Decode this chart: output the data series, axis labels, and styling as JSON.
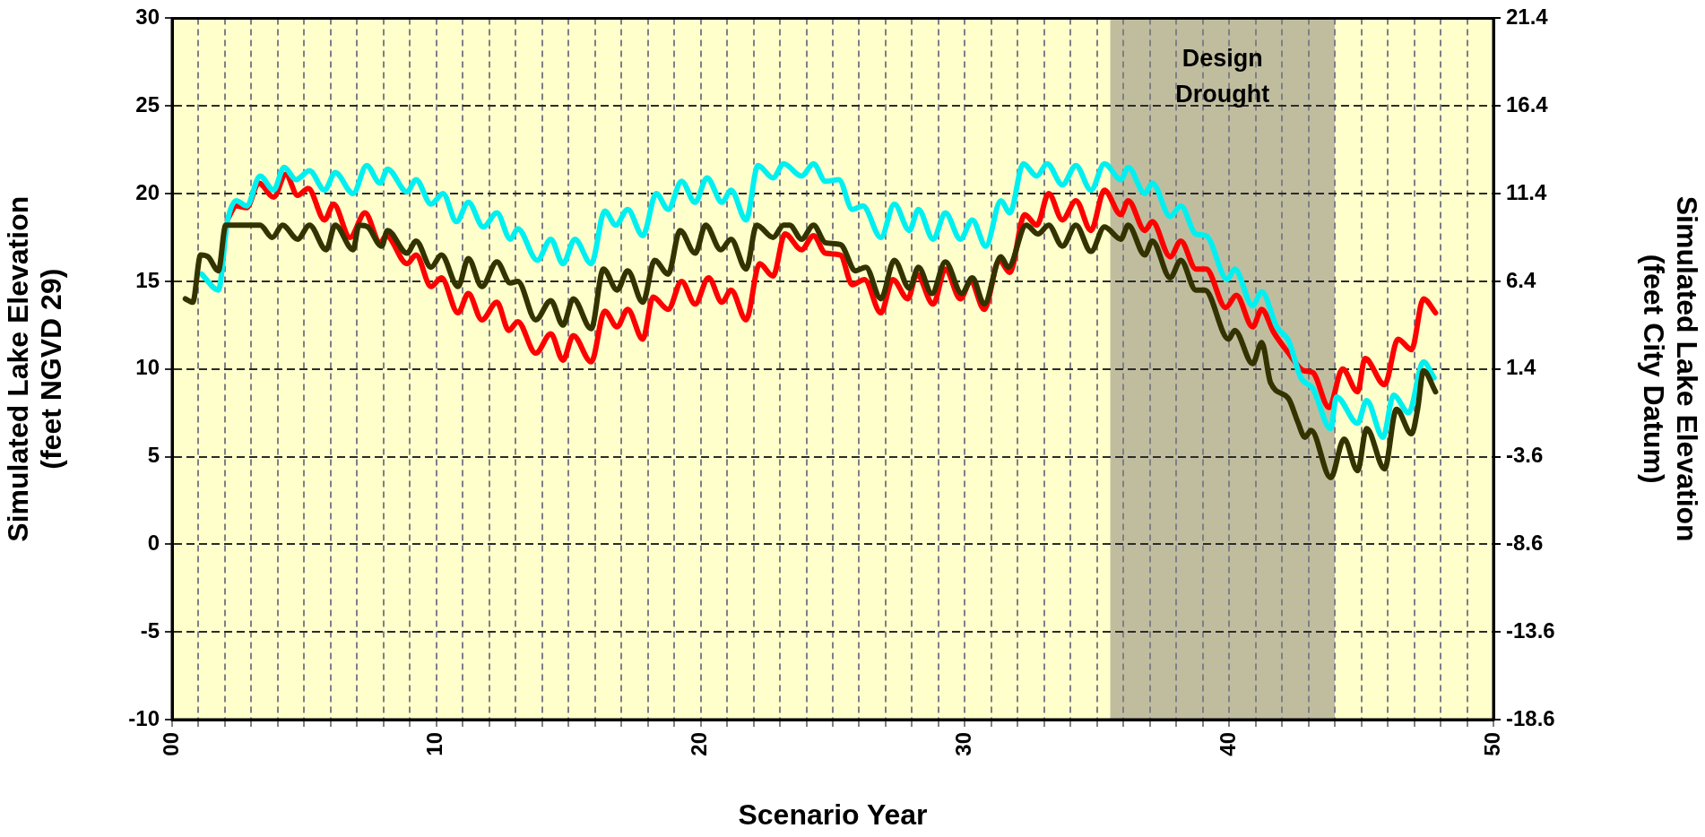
{
  "chart_data": {
    "type": "line",
    "xlabel": "Scenario Year",
    "ylabel": "Simulated Lake Elevation\n(feet NGVD 29)",
    "y2label": "Simulated Lake Elevation\n(feet City Datum)",
    "xlim": [
      0,
      50
    ],
    "xticks": [
      {
        "value": 0,
        "label": "00"
      },
      {
        "value": 1,
        "label": null
      },
      {
        "value": 2,
        "label": null
      },
      {
        "value": 3,
        "label": null
      },
      {
        "value": 4,
        "label": null
      },
      {
        "value": 5,
        "label": null
      },
      {
        "value": 6,
        "label": null
      },
      {
        "value": 7,
        "label": null
      },
      {
        "value": 8,
        "label": null
      },
      {
        "value": 9,
        "label": null
      },
      10,
      {
        "value": 11,
        "label": null
      },
      {
        "value": 12,
        "label": null
      },
      {
        "value": 13,
        "label": null
      },
      {
        "value": 14,
        "label": null
      },
      {
        "value": 15,
        "label": null
      },
      {
        "value": 16,
        "label": null
      },
      {
        "value": 17,
        "label": null
      },
      {
        "value": 18,
        "label": null
      },
      {
        "value": 19,
        "label": null
      },
      20,
      {
        "value": 21,
        "label": null
      },
      {
        "value": 22,
        "label": null
      },
      {
        "value": 23,
        "label": null
      },
      {
        "value": 24,
        "label": null
      },
      {
        "value": 25,
        "label": null
      },
      {
        "value": 26,
        "label": null
      },
      {
        "value": 27,
        "label": null
      },
      {
        "value": 28,
        "label": null
      },
      {
        "value": 29,
        "label": null
      },
      30,
      {
        "value": 31,
        "label": null
      },
      {
        "value": 32,
        "label": null
      },
      {
        "value": 33,
        "label": null
      },
      {
        "value": 34,
        "label": null
      },
      {
        "value": 35,
        "label": null
      },
      {
        "value": 36,
        "label": null
      },
      {
        "value": 37,
        "label": null
      },
      {
        "value": 38,
        "label": null
      },
      {
        "value": 39,
        "label": null
      },
      40,
      {
        "value": 41,
        "label": null
      },
      {
        "value": 42,
        "label": null
      },
      {
        "value": 43,
        "label": null
      },
      {
        "value": 44,
        "label": null
      },
      {
        "value": 45,
        "label": null
      },
      {
        "value": 46,
        "label": null
      },
      {
        "value": 47,
        "label": null
      },
      {
        "value": 48,
        "label": null
      },
      {
        "value": 49,
        "label": null
      },
      50
    ],
    "ylim": [
      -10,
      30
    ],
    "yticks": [
      -10,
      -5,
      0,
      5,
      10,
      15,
      20,
      25,
      30
    ],
    "y2lim": [
      -18.6,
      21.4
    ],
    "y2ticks": [
      -18.6,
      -13.6,
      -8.6,
      -3.6,
      1.4,
      6.4,
      11.4,
      16.4,
      21.4
    ],
    "grid": true,
    "bands": [
      {
        "axis": "x",
        "from": 35.5,
        "to": 44.0,
        "label": "Design Drought",
        "color": "#c0bd9f"
      }
    ],
    "series": [
      {
        "color": "#ff0000",
        "x": [
          2.09,
          2.43,
          2.82,
          3.28,
          3.84,
          4.3,
          4.75,
          5.15,
          5.77,
          6.11,
          6.73,
          7.3,
          7.87,
          8.1,
          8.89,
          9.23,
          9.8,
          10.19,
          10.82,
          11.21,
          11.72,
          12.29,
          12.74,
          13.08,
          13.76,
          14.33,
          14.79,
          15.18,
          15.86,
          16.37,
          16.84,
          17.24,
          17.81,
          18.2,
          18.77,
          19.28,
          19.79,
          20.3,
          20.81,
          21.15,
          21.72,
          22.23,
          22.74,
          23.19,
          23.82,
          24.27,
          24.72,
          25.29,
          25.74,
          26.2,
          26.82,
          27.27,
          27.84,
          28.18,
          28.8,
          29.26,
          29.83,
          30.22,
          30.73,
          31.3,
          31.7,
          32.26,
          32.72,
          33.17,
          33.69,
          34.2,
          34.77,
          35.28,
          35.9,
          36.18,
          36.81,
          37.09,
          37.77,
          38.17,
          38.74,
          39.13,
          39.87,
          40.27,
          40.89,
          41.23,
          41.68,
          42.25,
          42.82,
          43.16,
          43.78,
          44.29,
          44.86,
          45.14,
          45.88,
          46.39,
          46.9,
          47.35,
          47.81
        ],
        "values": [
          18.5,
          19.3,
          19.2,
          20.6,
          19.8,
          21.1,
          19.9,
          20.3,
          18.5,
          19.4,
          17.5,
          18.9,
          17.2,
          17.6,
          16.0,
          16.5,
          14.7,
          15.2,
          13.2,
          14.3,
          12.8,
          13.8,
          12.2,
          12.7,
          10.9,
          12.0,
          10.5,
          11.9,
          10.4,
          13.3,
          12.4,
          13.4,
          11.7,
          14.1,
          13.4,
          15.0,
          13.7,
          15.2,
          13.8,
          14.5,
          12.8,
          16.0,
          15.3,
          17.7,
          16.8,
          17.6,
          16.6,
          16.5,
          14.8,
          15.1,
          13.2,
          15.1,
          14.0,
          15.4,
          13.7,
          15.7,
          14.0,
          15.0,
          13.4,
          16.2,
          15.5,
          18.8,
          18.2,
          20.0,
          18.5,
          19.6,
          17.9,
          20.2,
          18.8,
          19.6,
          17.9,
          18.4,
          16.4,
          17.3,
          15.7,
          15.7,
          13.5,
          14.2,
          12.4,
          13.4,
          12.1,
          10.9,
          9.9,
          9.8,
          7.8,
          10.0,
          8.7,
          10.6,
          9.1,
          11.7,
          11.1,
          14.0,
          13.2
        ]
      },
      {
        "color": "#00f0f0",
        "x": [
          1.12,
          1.75,
          2.09,
          2.43,
          2.82,
          3.33,
          3.84,
          4.24,
          4.69,
          5.2,
          5.77,
          6.17,
          6.85,
          7.36,
          7.87,
          8.15,
          8.89,
          9.23,
          9.8,
          10.25,
          10.76,
          11.21,
          11.78,
          12.29,
          12.8,
          13.08,
          13.82,
          14.33,
          14.79,
          15.24,
          15.86,
          16.37,
          16.79,
          17.24,
          17.81,
          18.32,
          18.77,
          19.28,
          19.79,
          20.24,
          20.81,
          21.15,
          21.72,
          22.17,
          22.74,
          23.14,
          23.82,
          24.27,
          24.72,
          25.23,
          25.74,
          26.14,
          26.82,
          27.33,
          27.9,
          28.24,
          28.8,
          29.26,
          29.83,
          30.28,
          30.79,
          31.36,
          31.7,
          32.21,
          32.72,
          33.11,
          33.69,
          34.2,
          34.77,
          35.28,
          35.9,
          36.18,
          36.81,
          37.09,
          37.77,
          38.17,
          38.74,
          39.13,
          39.93,
          40.21,
          40.89,
          41.23,
          41.8,
          42.25,
          42.71,
          43.16,
          43.84,
          44.06,
          44.86,
          45.2,
          45.82,
          46.22,
          46.79,
          47.35,
          47.75
        ],
        "values": [
          15.4,
          14.5,
          18.4,
          19.6,
          19.3,
          21.0,
          20.2,
          21.5,
          20.8,
          21.3,
          20.2,
          21.2,
          20.0,
          21.6,
          20.6,
          21.4,
          20.1,
          20.8,
          19.4,
          20.0,
          18.4,
          19.5,
          18.1,
          18.9,
          17.4,
          18.0,
          16.2,
          17.4,
          16.0,
          17.4,
          16.0,
          19.0,
          18.2,
          19.1,
          17.6,
          20.0,
          19.1,
          20.7,
          19.5,
          20.9,
          19.5,
          20.2,
          18.5,
          21.6,
          20.9,
          21.7,
          21.0,
          21.7,
          20.7,
          20.8,
          19.1,
          19.3,
          17.5,
          19.4,
          17.9,
          19.1,
          17.4,
          18.9,
          17.4,
          18.5,
          17.0,
          19.6,
          18.9,
          21.7,
          21.0,
          21.7,
          20.5,
          21.6,
          20.2,
          21.7,
          20.8,
          21.5,
          20.0,
          20.6,
          18.7,
          19.3,
          17.7,
          17.6,
          15.1,
          15.7,
          13.6,
          14.4,
          12.4,
          11.6,
          9.5,
          8.9,
          6.6,
          8.4,
          6.9,
          8.2,
          6.1,
          8.5,
          7.5,
          10.4,
          9.5
        ]
      },
      {
        "color": "#333300",
        "x": [
          0.5,
          0.78,
          1.08,
          1.36,
          1.75,
          2.03,
          3.33,
          3.79,
          4.18,
          4.75,
          5.2,
          5.83,
          6.17,
          6.85,
          7.07,
          7.4,
          7.93,
          8.15,
          8.89,
          9.23,
          9.8,
          10.19,
          10.82,
          11.21,
          11.72,
          12.29,
          12.8,
          13.08,
          13.76,
          14.33,
          14.79,
          15.18,
          15.86,
          16.32,
          16.84,
          17.24,
          17.81,
          18.26,
          18.77,
          19.22,
          19.79,
          20.19,
          20.76,
          21.15,
          21.72,
          22.12,
          22.74,
          23.14,
          23.37,
          23.82,
          24.27,
          24.72,
          25.29,
          25.86,
          26.25,
          26.82,
          27.33,
          27.9,
          28.24,
          28.75,
          29.26,
          29.88,
          30.28,
          30.73,
          31.36,
          31.64,
          32.32,
          32.77,
          33.17,
          33.69,
          34.2,
          34.77,
          35.28,
          35.9,
          36.18,
          36.81,
          37.09,
          37.77,
          38.17,
          38.74,
          39.08,
          39.98,
          40.21,
          40.89,
          41.23,
          41.57,
          42.25,
          42.59,
          42.87,
          43.1,
          43.84,
          44.35,
          44.86,
          45.2,
          45.88,
          46.33,
          46.9,
          47.13,
          47.35,
          47.81
        ],
        "values": [
          14.0,
          13.8,
          16.5,
          16.4,
          15.6,
          18.2,
          18.2,
          17.5,
          18.2,
          17.4,
          18.2,
          16.8,
          18.2,
          16.8,
          18.2,
          18.1,
          17.0,
          17.9,
          16.6,
          17.3,
          15.8,
          16.5,
          14.7,
          16.3,
          14.7,
          16.1,
          14.9,
          15.0,
          12.8,
          13.9,
          12.5,
          14.0,
          12.3,
          15.7,
          14.5,
          15.6,
          13.8,
          16.2,
          15.4,
          17.9,
          16.6,
          18.2,
          16.8,
          17.4,
          15.7,
          18.2,
          17.5,
          18.2,
          18.2,
          17.4,
          18.2,
          17.2,
          17.1,
          15.6,
          15.8,
          14.0,
          16.2,
          14.6,
          15.8,
          14.3,
          16.1,
          14.3,
          15.2,
          13.7,
          16.4,
          15.8,
          18.2,
          17.7,
          18.2,
          17.0,
          18.2,
          16.7,
          18.1,
          17.4,
          18.2,
          16.5,
          17.3,
          15.2,
          16.2,
          14.5,
          14.5,
          11.7,
          12.2,
          10.3,
          11.5,
          9.2,
          8.3,
          7.0,
          6.1,
          6.5,
          3.8,
          6.0,
          4.2,
          6.6,
          4.3,
          7.7,
          6.3,
          7.7,
          9.9,
          8.7
        ]
      }
    ]
  }
}
